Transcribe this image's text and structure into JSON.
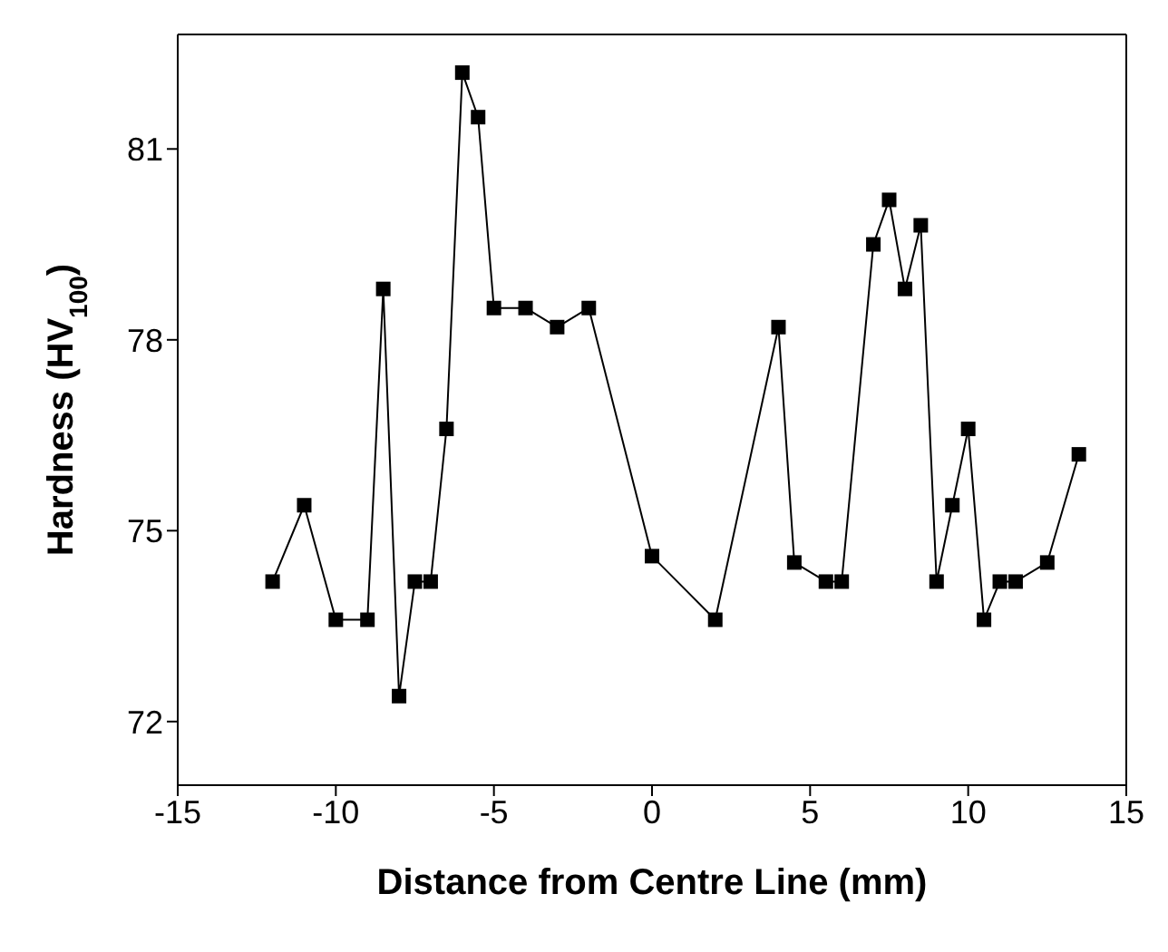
{
  "chart_data": {
    "type": "line",
    "xlabel": "Distance from Centre Line (mm)",
    "ylabel": "Hardness (HV$_{100}$)",
    "x": [
      -12,
      -11,
      -10,
      -9,
      -8.5,
      -8,
      -7.5,
      -7,
      -6.5,
      -6,
      -5.5,
      -5,
      -4,
      -3,
      -2,
      0,
      2,
      4,
      4.5,
      5.5,
      6,
      7,
      7.5,
      8,
      8.5,
      9,
      9.5,
      10,
      10.5,
      11,
      11.5,
      12.5,
      13.5
    ],
    "series": [
      {
        "color": "#000000",
        "values": [
          74.2,
          75.4,
          73.6,
          73.6,
          78.8,
          72.4,
          74.2,
          74.2,
          76.6,
          82.2,
          81.5,
          78.5,
          78.5,
          78.2,
          78.5,
          74.6,
          73.6,
          78.2,
          74.5,
          74.2,
          74.2,
          79.5,
          80.2,
          78.8,
          79.8,
          74.2,
          75.4,
          76.6,
          73.6,
          74.2,
          74.2,
          74.5,
          76.2
        ]
      }
    ],
    "xlim": [
      -15,
      15
    ],
    "xticks": [
      -15,
      -10,
      -5,
      0,
      5,
      10,
      15
    ],
    "ylim": [
      71,
      82.8
    ],
    "yticks": [
      72,
      75,
      78,
      81
    ],
    "grid": false,
    "legend": false,
    "marker": "square",
    "line_style": "solid"
  }
}
